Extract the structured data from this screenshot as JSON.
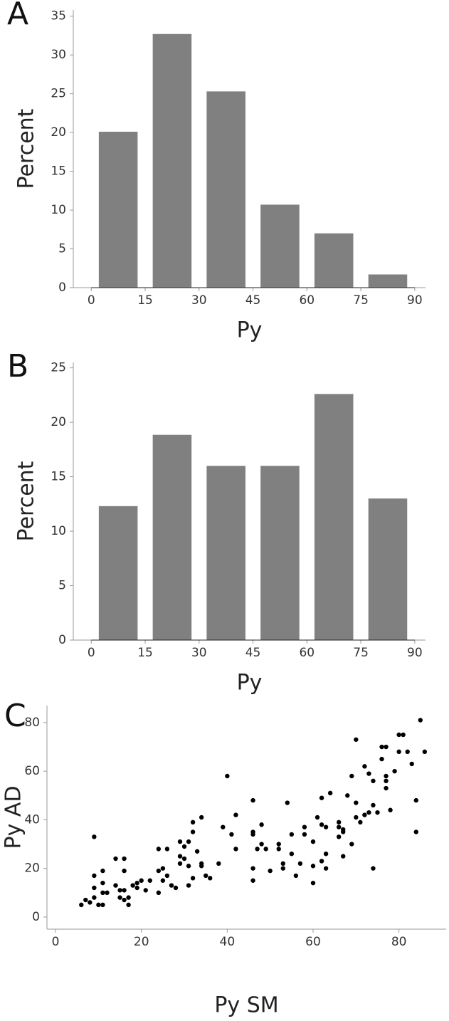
{
  "chart_data": [
    {
      "type": "histogram",
      "panel_label": "A",
      "x_label": "Py",
      "y_label": "Percent",
      "bins": [
        0,
        15,
        30,
        45,
        60,
        75,
        90
      ],
      "values": [
        20.1,
        32.7,
        25.3,
        10.7,
        7.0,
        1.7
      ],
      "color": "#808080",
      "xlim": [
        -5,
        93
      ],
      "ylim": [
        0,
        35.8
      ],
      "xticks": [
        0,
        15,
        30,
        45,
        60,
        75,
        90
      ],
      "yticks": [
        0,
        5,
        10,
        15,
        20,
        25,
        30,
        35
      ],
      "grid": false
    },
    {
      "type": "histogram",
      "panel_label": "B",
      "x_label": "Py",
      "y_label": "Percent",
      "bins": [
        0,
        15,
        30,
        45,
        60,
        75,
        90
      ],
      "values": [
        12.3,
        18.85,
        16.0,
        16.0,
        22.6,
        13.0
      ],
      "color": "#808080",
      "xlim": [
        -5,
        93
      ],
      "ylim": [
        0,
        25.5
      ],
      "xticks": [
        0,
        15,
        30,
        45,
        60,
        75,
        90
      ],
      "yticks": [
        0,
        5,
        10,
        15,
        20,
        25
      ],
      "grid": false
    },
    {
      "type": "scatter",
      "panel_label": "C",
      "x_label": "Py SM",
      "y_label": "Py AD",
      "color": "#000000",
      "x": [
        6,
        7,
        8,
        9,
        9,
        9,
        9,
        10,
        11,
        11,
        11,
        11,
        12,
        14,
        14,
        15,
        15,
        16,
        16,
        16,
        16,
        17,
        17,
        18,
        19,
        19,
        20,
        21,
        22,
        24,
        24,
        24,
        25,
        25,
        26,
        26,
        27,
        28,
        29,
        29,
        29,
        30,
        30,
        31,
        31,
        31,
        32,
        32,
        32,
        33,
        34,
        34,
        34,
        35,
        36,
        38,
        39,
        40,
        41,
        42,
        42,
        46,
        46,
        46,
        46,
        46,
        47,
        48,
        48,
        49,
        50,
        52,
        52,
        53,
        53,
        54,
        55,
        55,
        56,
        57,
        58,
        58,
        60,
        60,
        60,
        61,
        62,
        62,
        62,
        63,
        63,
        63,
        64,
        66,
        66,
        66,
        67,
        67,
        67,
        68,
        69,
        69,
        70,
        70,
        70,
        71,
        72,
        72,
        73,
        73,
        74,
        74,
        74,
        75,
        76,
        76,
        77,
        77,
        77,
        77,
        78,
        79,
        80,
        80,
        81,
        82,
        83,
        84,
        84,
        85,
        86
      ],
      "y": [
        5,
        7,
        6,
        8,
        12,
        17,
        33,
        5,
        5,
        10,
        14,
        19,
        10,
        13,
        24,
        8,
        11,
        7,
        11,
        19,
        24,
        5,
        8,
        13,
        12,
        14,
        15,
        11,
        15,
        10,
        19,
        28,
        15,
        20,
        17,
        28,
        13,
        12,
        22,
        25,
        31,
        24,
        29,
        21,
        31,
        13,
        16,
        35,
        39,
        27,
        21,
        22,
        41,
        17,
        16,
        22,
        37,
        58,
        34,
        28,
        42,
        48,
        35,
        34,
        20,
        15,
        28,
        30,
        38,
        28,
        19,
        30,
        28,
        22,
        20,
        47,
        26,
        34,
        17,
        22,
        37,
        34,
        21,
        14,
        31,
        41,
        38,
        23,
        49,
        37,
        26,
        20,
        51,
        39,
        37,
        33,
        35,
        25,
        36,
        50,
        30,
        58,
        73,
        47,
        41,
        39,
        62,
        42,
        43,
        59,
        56,
        46,
        20,
        43,
        65,
        70,
        70,
        58,
        53,
        56,
        44,
        60,
        68,
        75,
        75,
        68,
        63,
        48,
        35,
        81,
        68
      ],
      "xlim": [
        -2,
        91
      ],
      "ylim": [
        -5,
        87
      ],
      "xticks": [
        0,
        20,
        40,
        60,
        80
      ],
      "yticks": [
        0,
        20,
        40,
        60,
        80
      ],
      "grid": false
    }
  ]
}
